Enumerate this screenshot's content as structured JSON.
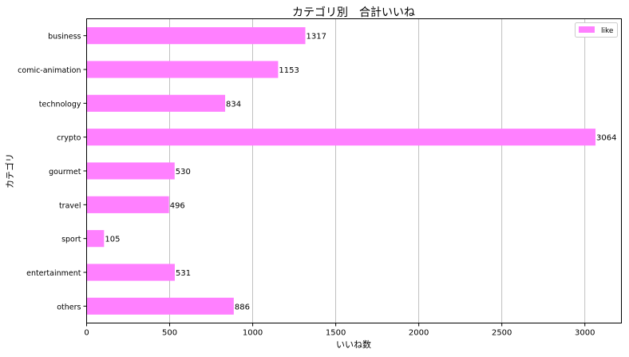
{
  "chart_data": {
    "type": "bar",
    "orientation": "horizontal",
    "title": "カテゴリ別　合計いいね",
    "xlabel": "いいね数",
    "ylabel": "カテゴリ",
    "categories": [
      "business",
      "comic-animation",
      "technology",
      "crypto",
      "gourmet",
      "travel",
      "sport",
      "entertainment",
      "others"
    ],
    "series": [
      {
        "name": "like",
        "values": [
          1317,
          1153,
          834,
          3064,
          530,
          496,
          105,
          531,
          886
        ],
        "color": "#ff80ff"
      }
    ],
    "xlim": [
      0,
      3220
    ],
    "xticks": [
      0,
      500,
      1000,
      1500,
      2000,
      2500,
      3000
    ],
    "grid": "vertical",
    "legend_position": "top-right",
    "show_data_labels": true
  }
}
